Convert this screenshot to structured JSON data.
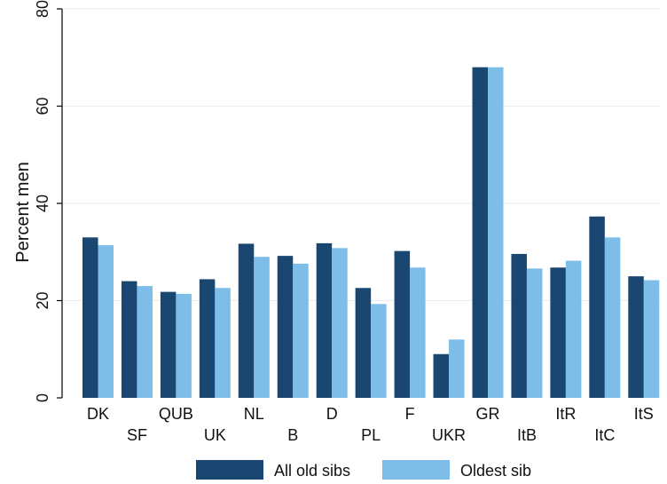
{
  "chart_data": {
    "type": "bar",
    "categories": [
      "DK",
      "SF",
      "QUB",
      "UK",
      "NL",
      "B",
      "D",
      "PL",
      "F",
      "UKR",
      "GR",
      "ItB",
      "ItR",
      "ItC",
      "ItS"
    ],
    "series": [
      {
        "name": "All old sibs",
        "color": "#1a4672",
        "values": [
          33,
          24,
          21.8,
          24.4,
          31.7,
          29.2,
          31.8,
          22.6,
          30.2,
          9,
          68,
          29.6,
          26.8,
          37.3,
          25
        ]
      },
      {
        "name": "Oldest sib",
        "color": "#7dbde8",
        "values": [
          31.4,
          23,
          21.4,
          22.6,
          29,
          27.6,
          30.8,
          19.3,
          26.8,
          12,
          68,
          26.6,
          28.2,
          33,
          24.2
        ]
      }
    ],
    "ylabel": "Percent men",
    "xlabel": "",
    "ylim": [
      0,
      80
    ],
    "yticks": [
      0,
      20,
      40,
      60,
      80
    ],
    "grid": true,
    "legend_position": "bottom"
  }
}
